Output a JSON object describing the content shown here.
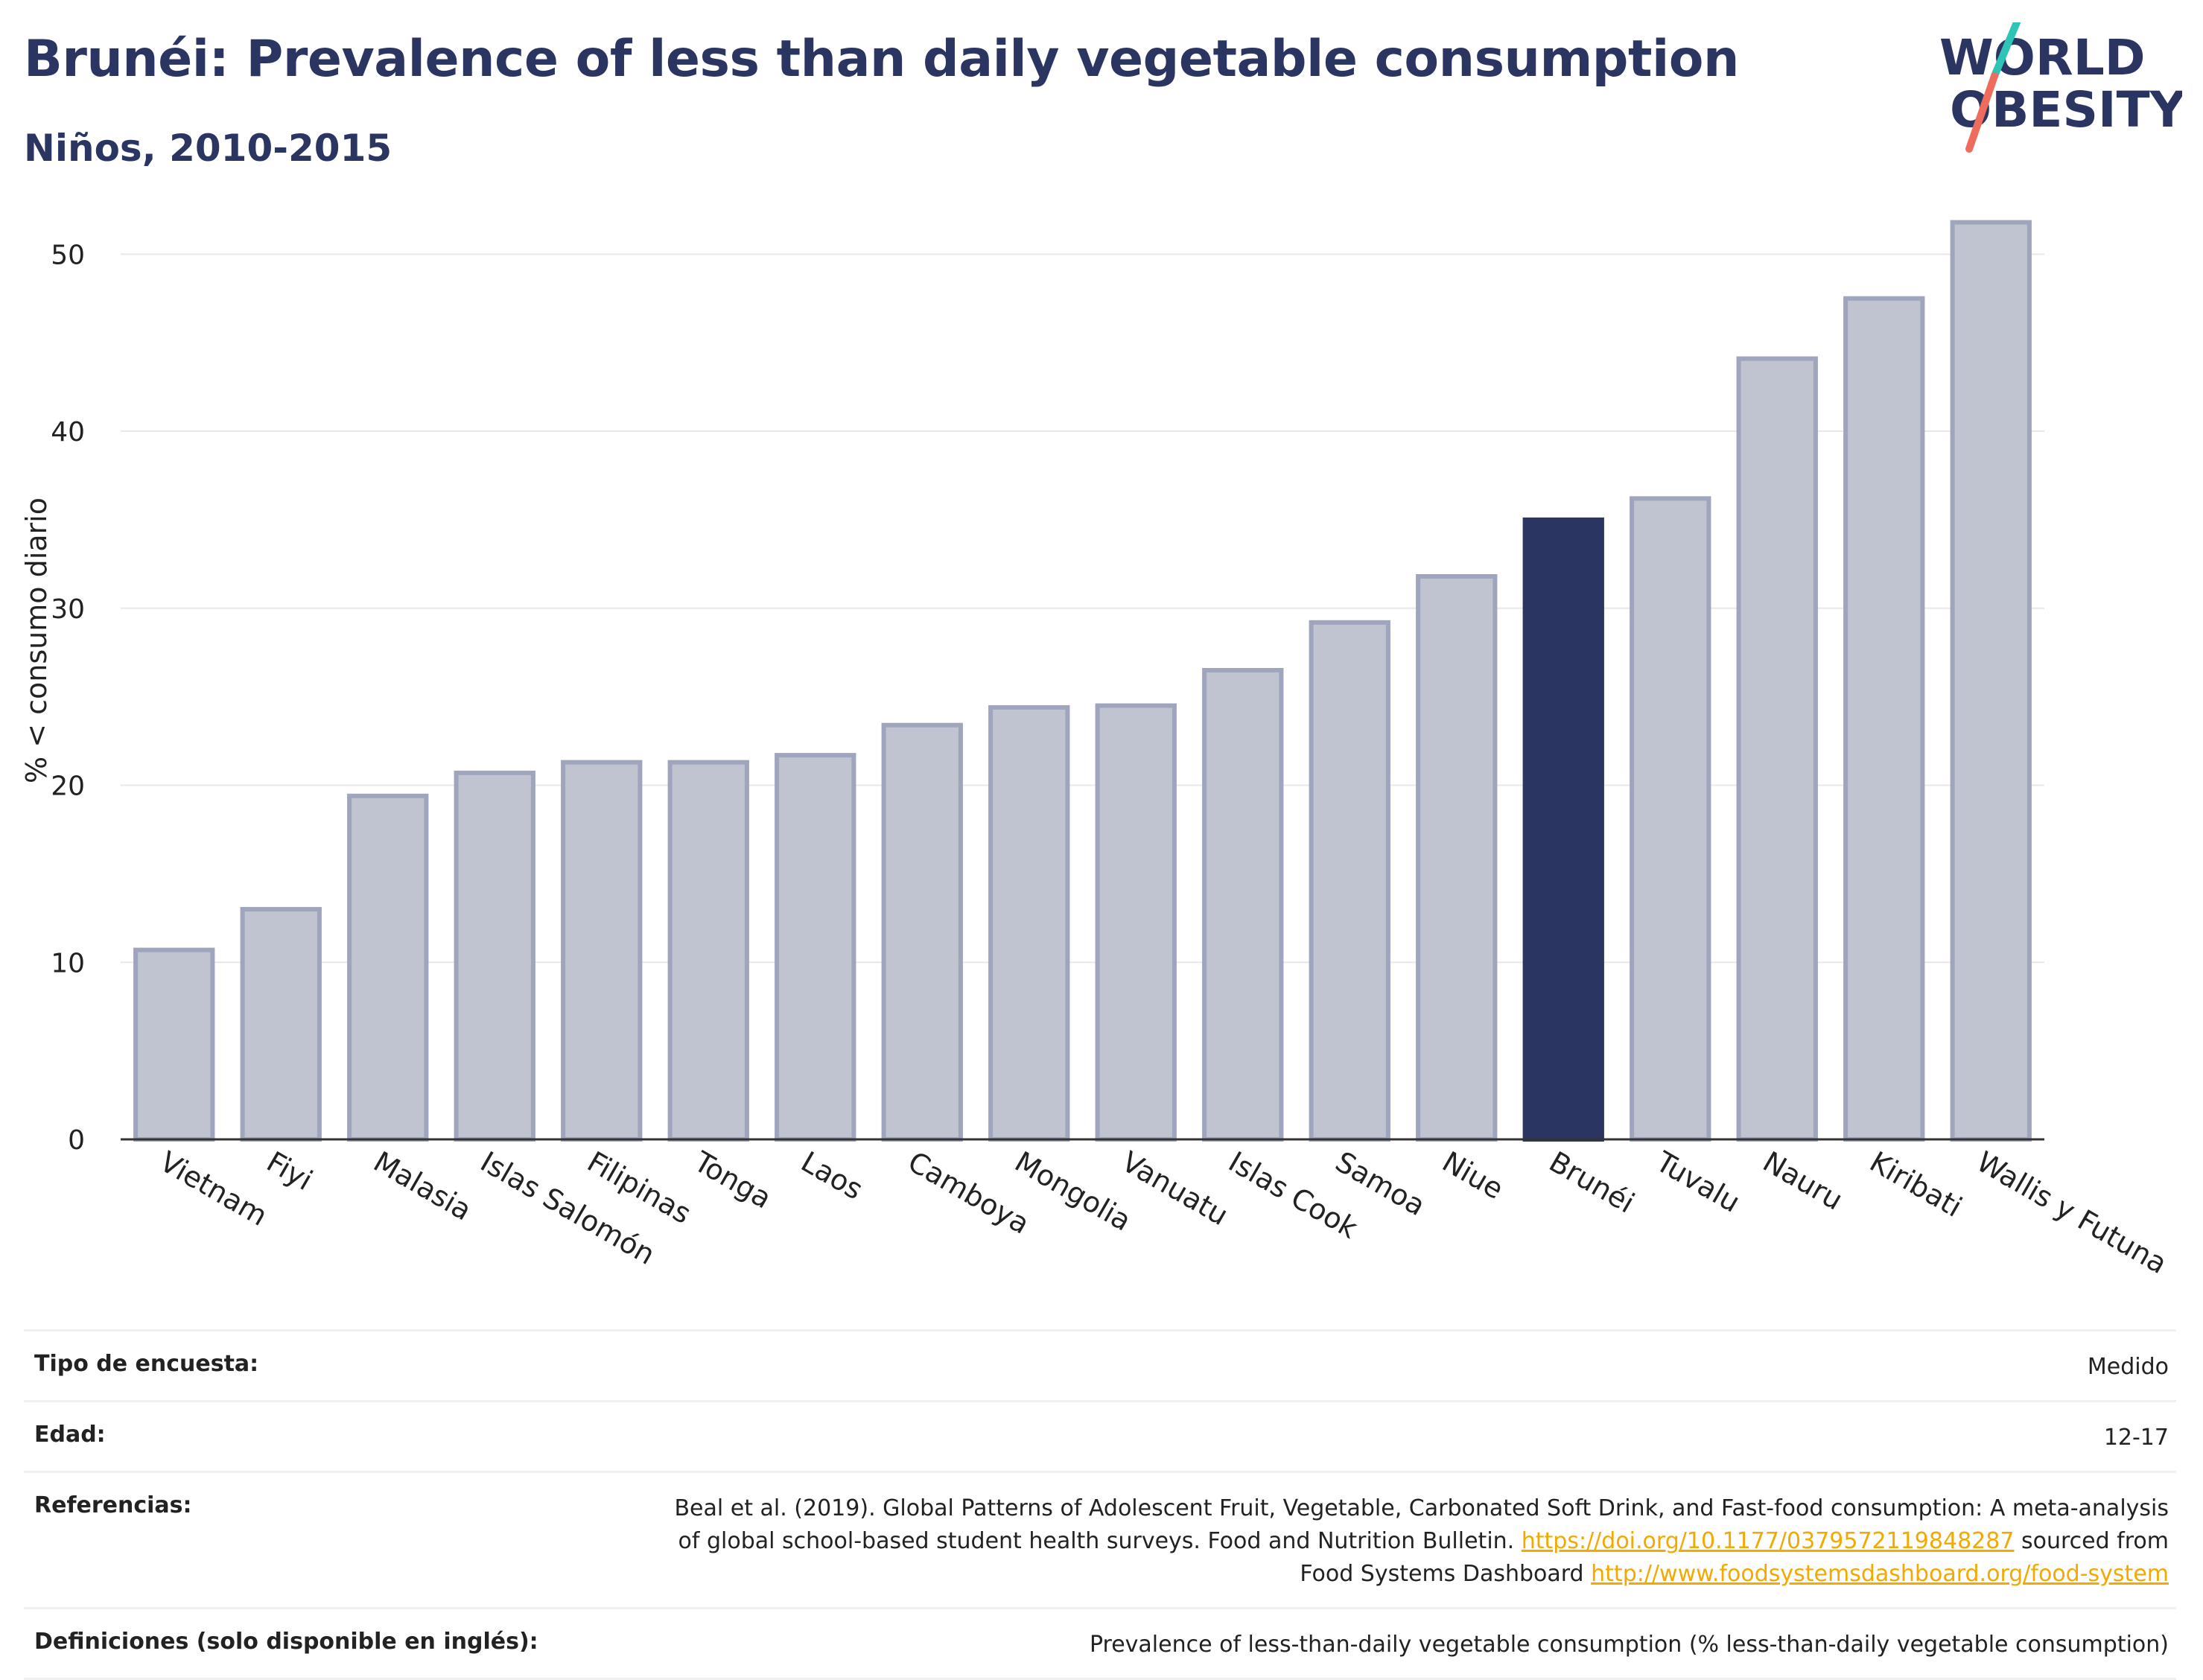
{
  "header": {
    "title": "Brunéi: Prevalence of less than daily vegetable consumption",
    "subtitle": "Niños, 2010-2015"
  },
  "logo": {
    "line1": "WORLD",
    "line2": "OBESITY"
  },
  "colors": {
    "bar": "#c0c4d0",
    "bar_stroke": "#9ea5bc",
    "highlight": "#2a3561",
    "grid": "#e6e8ee",
    "link": "#f2a900"
  },
  "chart_data": {
    "type": "bar",
    "categories": [
      "Vietnam",
      "Fiyi",
      "Malasia",
      "Islas Salomón",
      "Filipinas",
      "Tonga",
      "Laos",
      "Camboya",
      "Mongolia",
      "Vanuatu",
      "Islas Cook",
      "Samoa",
      "Niue",
      "Brunéi",
      "Tuvalu",
      "Nauru",
      "Kiribati",
      "Wallis y Futuna"
    ],
    "values": [
      10.7,
      13.0,
      19.4,
      20.7,
      21.3,
      21.3,
      21.7,
      23.4,
      24.4,
      24.5,
      26.5,
      29.2,
      31.8,
      35.0,
      36.2,
      44.1,
      47.5,
      51.8
    ],
    "highlight": "Brunéi",
    "ylabel": "% < consumo diario",
    "ylim": [
      0,
      53
    ],
    "yticks": [
      0,
      10,
      20,
      30,
      40,
      50
    ],
    "grid": true
  },
  "footer": {
    "survey_label": "Tipo de encuesta:",
    "survey_value": "Medido",
    "age_label": "Edad:",
    "age_value": "12-17",
    "ref_label": "Referencias:",
    "ref_text1": "Beal et al. (2019). Global Patterns of Adolescent Fruit, Vegetable, Carbonated Soft Drink, and Fast-food consumption: A meta-analysis",
    "ref_text2": "of global school-based student health surveys. Food and Nutrition Bulletin.",
    "ref_link1": "https://doi.org/10.1177/0379572119848287",
    "ref_text3": "sourced from",
    "ref_text4": "Food Systems Dashboard",
    "ref_link2": "http://www.foodsystemsdashboard.org/food-system",
    "def_label": "Definiciones (solo disponible en inglés):",
    "def_value": "Prevalence of less-than-daily vegetable consumption (% less-than-daily vegetable consumption)"
  }
}
